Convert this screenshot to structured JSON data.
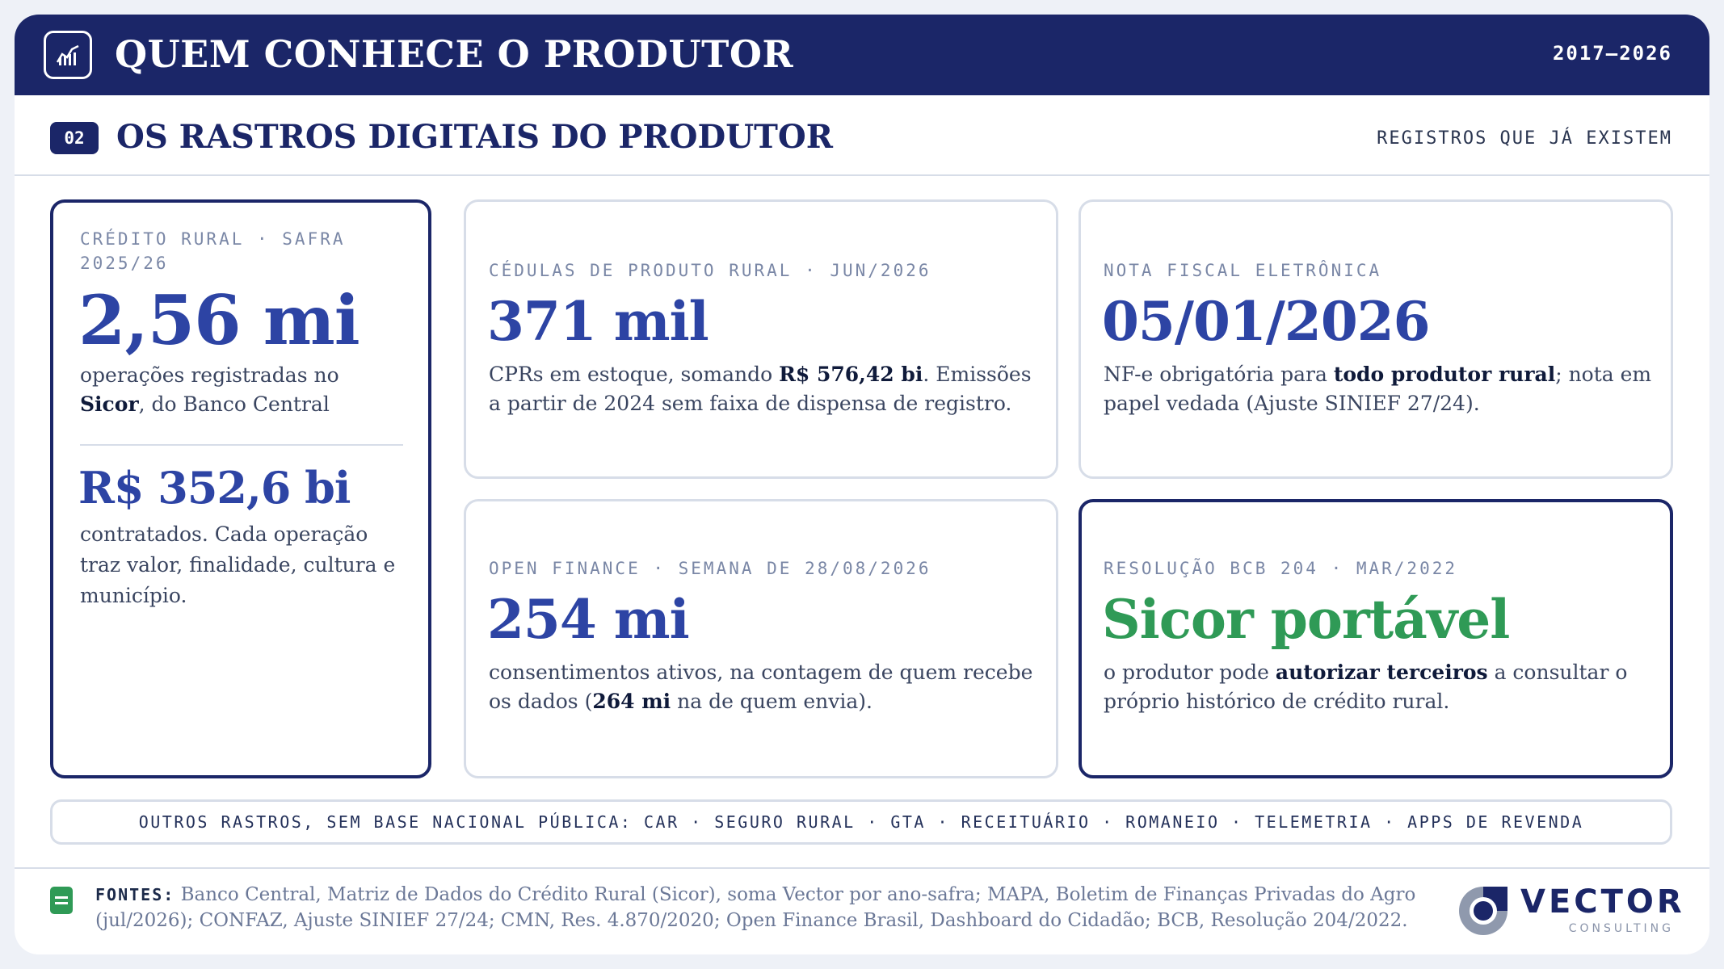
{
  "header": {
    "title": "QUEM CONHECE O PRODUTOR",
    "years": "2017–2026",
    "logo_icon": "bar-chart-icon"
  },
  "section": {
    "number": "02",
    "title": "OS RASTROS DIGITAIS DO PRODUTOR",
    "right_label": "REGISTROS QUE JÁ EXISTEM"
  },
  "cards": {
    "credito": {
      "kicker_line1": "CRÉDITO RURAL · SAFRA",
      "kicker_line2": "2025/26",
      "value": "2,56 mi",
      "desc_pre": "operações registradas no",
      "desc_bold": "Sicor",
      "desc_post": ", do Banco Central",
      "value2": "R$ 352,6 bi",
      "desc2": "contratados. Cada operação traz valor, finalidade, cultura e município."
    },
    "cpr": {
      "kicker": "CÉDULAS DE PRODUTO RURAL · JUN/2026",
      "value": "371 mil",
      "desc_pre": "CPRs em estoque, somando ",
      "desc_bold": "R$ 576,42 bi",
      "desc_post": ". Emissões a partir de 2024 sem faixa de dispensa de registro."
    },
    "nfe": {
      "kicker": "NOTA FISCAL ELETRÔNICA",
      "value": "05/01/2026",
      "desc_pre": "NF-e obrigatória para ",
      "desc_bold": "todo produtor rural",
      "desc_post": "; nota em papel vedada (Ajuste SINIEF 27/24)."
    },
    "open_finance": {
      "kicker": "OPEN FINANCE · SEMANA DE 28/08/2026",
      "value": "254 mi",
      "desc_pre": "consentimentos ativos, na contagem de quem recebe os dados (",
      "desc_bold": "264 mi",
      "desc_post": " na de quem envia)."
    },
    "bcb": {
      "kicker": "RESOLUÇÃO BCB 204 · MAR/2022",
      "value": "Sicor portável",
      "desc_pre": "o produtor pode ",
      "desc_bold": "autorizar terceiros",
      "desc_post": " a consultar o próprio histórico de crédito rural.",
      "accent_color": "#2f9a56"
    }
  },
  "strip": {
    "text": "OUTROS RASTROS, SEM BASE NACIONAL PÚBLICA: CAR · SEGURO RURAL · GTA · RECEITUÁRIO · ROMANEIO · TELEMETRIA · APPS DE REVENDA"
  },
  "footer": {
    "sources_label": "FONTES:",
    "sources_text": "Banco Central, Matriz de Dados do Crédito Rural (Sicor), soma Vector por ano-safra; MAPA, Boletim de Finanças Privadas do Agro (jul/2026); CONFAZ, Ajuste SINIEF 27/24; CMN, Res. 4.870/2020; Open Finance Brasil, Dashboard do Cidadão; BCB, Resolução 204/2022.",
    "brand_name": "VECTOR",
    "brand_sub": "CONSULTING"
  },
  "colors": {
    "navy": "#1b2668",
    "blue": "#2d44a4",
    "green": "#2f9a56"
  }
}
